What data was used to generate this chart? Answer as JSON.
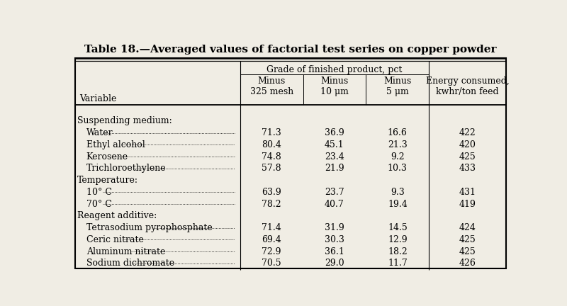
{
  "title": "Table 18.—Averaged values of factorial test series on copper powder",
  "col_group_label": "Grade of finished product, pct",
  "col_headers": [
    "Minus\n325 mesh",
    "Minus\n10 μm",
    "Minus\n5 μm",
    "Energy consumed,\nkwhr/ton feed"
  ],
  "row_label_header": "Variable",
  "sections": [
    {
      "section_label": "Suspending medium:",
      "rows": [
        {
          "label": "Water",
          "values": [
            "71.3",
            "36.9",
            "16.6",
            "422"
          ]
        },
        {
          "label": "Ethyl alcohol",
          "values": [
            "80.4",
            "45.1",
            "21.3",
            "420"
          ]
        },
        {
          "label": "Kerosene",
          "values": [
            "74.8",
            "23.4",
            "9.2",
            "425"
          ]
        },
        {
          "label": "Trichloroethylene",
          "values": [
            "57.8",
            "21.9",
            "10.3",
            "433"
          ]
        }
      ]
    },
    {
      "section_label": "Temperature:",
      "rows": [
        {
          "label": "10° C",
          "values": [
            "63.9",
            "23.7",
            "9.3",
            "431"
          ]
        },
        {
          "label": "70° C",
          "values": [
            "78.2",
            "40.7",
            "19.4",
            "419"
          ]
        }
      ]
    },
    {
      "section_label": "Reagent additive:",
      "rows": [
        {
          "label": "Tetrasodium pyrophosphate",
          "values": [
            "71.4",
            "31.9",
            "14.5",
            "424"
          ]
        },
        {
          "label": "Ceric nitrate",
          "values": [
            "69.4",
            "30.3",
            "12.9",
            "425"
          ]
        },
        {
          "label": "Aluminum nitrate",
          "values": [
            "72.9",
            "36.1",
            "18.2",
            "425"
          ]
        },
        {
          "label": "Sodium dichromate",
          "values": [
            "70.5",
            "29.0",
            "11.7",
            "426"
          ]
        }
      ]
    }
  ],
  "bg_color": "#f0ede4",
  "text_color": "#000000",
  "title_fontsize": 11,
  "header_fontsize": 9,
  "body_fontsize": 9
}
